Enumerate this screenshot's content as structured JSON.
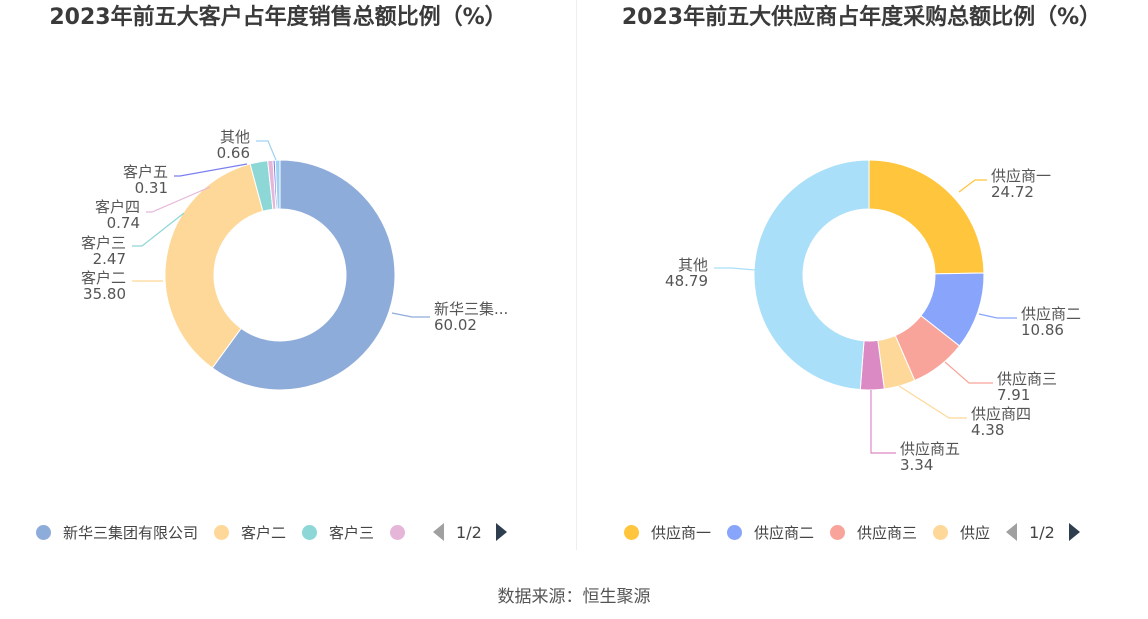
{
  "charts": [
    {
      "title": "2023年前五大客户占年度销售总额比例（%）",
      "legend": {
        "items": [
          {
            "label": "新华三集团有限公司",
            "color": "#8eacda"
          },
          {
            "label": "客户二",
            "color": "#fed899"
          },
          {
            "label": "客户三",
            "color": "#8dd7d7"
          },
          {
            "label": "",
            "color": "#e6b6d9"
          }
        ],
        "page": "1/2"
      }
    },
    {
      "title": "2023年前五大供应商占年度采购总额比例（%）",
      "legend": {
        "items": [
          {
            "label": "供应商一",
            "color": "#ffc53d"
          },
          {
            "label": "供应商二",
            "color": "#88a4fb"
          },
          {
            "label": "供应商三",
            "color": "#f9a49a"
          },
          {
            "label": "供应",
            "color": "#fed899"
          }
        ],
        "page": "1/2"
      }
    }
  ],
  "source": "数据来源：恒生聚源",
  "chart_data": [
    {
      "type": "pie",
      "title": "2023年前五大客户占年度销售总额比例（%）",
      "donut": true,
      "slices": [
        {
          "label": "新华三集...",
          "value": 60.02,
          "color": "#8eacda"
        },
        {
          "label": "客户二",
          "value": 35.8,
          "color": "#fed899"
        },
        {
          "label": "客户三",
          "value": 2.47,
          "color": "#8dd7d7"
        },
        {
          "label": "客户四",
          "value": 0.74,
          "color": "#e6b6d9"
        },
        {
          "label": "客户五",
          "value": 0.31,
          "color": "#7b7ff0"
        },
        {
          "label": "其他",
          "value": 0.66,
          "color": "#9fd2f0"
        }
      ]
    },
    {
      "type": "pie",
      "title": "2023年前五大供应商占年度采购总额比例（%）",
      "donut": true,
      "slices": [
        {
          "label": "供应商一",
          "value": 24.72,
          "color": "#ffc53d"
        },
        {
          "label": "供应商二",
          "value": 10.86,
          "color": "#88a4fb"
        },
        {
          "label": "供应商三",
          "value": 7.91,
          "color": "#f9a49a"
        },
        {
          "label": "供应商四",
          "value": 4.38,
          "color": "#fed899"
        },
        {
          "label": "供应商五",
          "value": 3.34,
          "color": "#dc8ac4"
        },
        {
          "label": "其他",
          "value": 48.79,
          "color": "#a9dff8"
        }
      ]
    }
  ]
}
